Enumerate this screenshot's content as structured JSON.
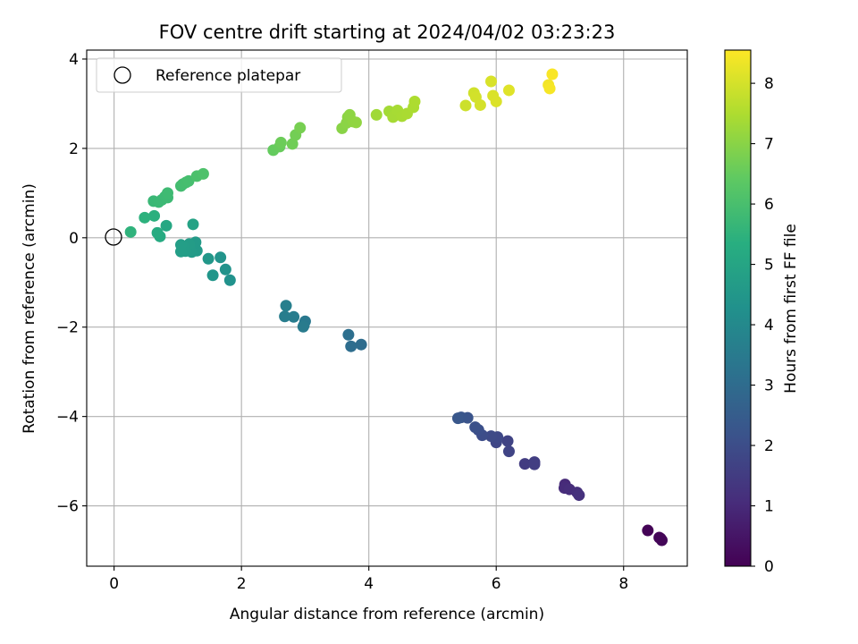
{
  "chart_data": {
    "type": "scatter",
    "title": "FOV centre drift starting at 2024/04/02 03:23:23",
    "xlabel": "Angular distance from reference (arcmin)",
    "ylabel": "Rotation from reference (arcmin)",
    "xlim": [
      -0.43,
      9.0
    ],
    "ylim": [
      -7.35,
      4.2
    ],
    "xticks": [
      0,
      2,
      4,
      6,
      8
    ],
    "yticks": [
      -6,
      -4,
      -2,
      0,
      2,
      4
    ],
    "grid": true,
    "colormap": "viridis",
    "colorbar": {
      "label": "Hours from first FF file",
      "min": 0,
      "max": 8.55,
      "ticks": [
        0,
        1,
        2,
        3,
        4,
        5,
        6,
        7,
        8
      ]
    },
    "legend": {
      "position": "top-left",
      "entries": [
        "Reference platepar"
      ]
    },
    "reference_point": {
      "x": 0,
      "y": 0
    },
    "points": [
      {
        "x": 8.38,
        "y": -6.55,
        "t": 0.05
      },
      {
        "x": 8.56,
        "y": -6.71,
        "t": 0.1
      },
      {
        "x": 8.6,
        "y": -6.77,
        "t": 0.15
      },
      {
        "x": 8.58,
        "y": -6.73,
        "t": 0.12
      },
      {
        "x": 7.08,
        "y": -5.52,
        "t": 1.0
      },
      {
        "x": 7.07,
        "y": -5.6,
        "t": 1.05
      },
      {
        "x": 7.15,
        "y": -5.63,
        "t": 1.1
      },
      {
        "x": 7.27,
        "y": -5.7,
        "t": 1.15
      },
      {
        "x": 7.3,
        "y": -5.76,
        "t": 1.2
      },
      {
        "x": 6.45,
        "y": -5.06,
        "t": 1.5
      },
      {
        "x": 6.6,
        "y": -5.02,
        "t": 1.55
      },
      {
        "x": 6.6,
        "y": -5.07,
        "t": 1.55
      },
      {
        "x": 6.18,
        "y": -4.55,
        "t": 1.7
      },
      {
        "x": 6.2,
        "y": -4.78,
        "t": 1.72
      },
      {
        "x": 6.0,
        "y": -4.58,
        "t": 1.8
      },
      {
        "x": 6.02,
        "y": -4.46,
        "t": 1.85
      },
      {
        "x": 5.92,
        "y": -4.44,
        "t": 1.9
      },
      {
        "x": 5.78,
        "y": -4.42,
        "t": 2.0
      },
      {
        "x": 5.72,
        "y": -4.3,
        "t": 2.05
      },
      {
        "x": 5.67,
        "y": -4.24,
        "t": 2.1
      },
      {
        "x": 5.55,
        "y": -4.03,
        "t": 2.2
      },
      {
        "x": 5.45,
        "y": -4.02,
        "t": 2.25
      },
      {
        "x": 5.4,
        "y": -4.04,
        "t": 2.3
      },
      {
        "x": 3.88,
        "y": -2.39,
        "t": 3.0
      },
      {
        "x": 3.72,
        "y": -2.43,
        "t": 3.05
      },
      {
        "x": 3.68,
        "y": -2.17,
        "t": 3.1
      },
      {
        "x": 3.0,
        "y": -1.87,
        "t": 3.4
      },
      {
        "x": 2.98,
        "y": -1.96,
        "t": 3.45
      },
      {
        "x": 2.97,
        "y": -1.99,
        "t": 3.5
      },
      {
        "x": 2.82,
        "y": -1.77,
        "t": 3.55
      },
      {
        "x": 2.68,
        "y": -1.76,
        "t": 3.6
      },
      {
        "x": 2.7,
        "y": -1.52,
        "t": 3.65
      },
      {
        "x": 1.82,
        "y": -0.95,
        "t": 4.3
      },
      {
        "x": 1.75,
        "y": -0.71,
        "t": 4.35
      },
      {
        "x": 1.67,
        "y": -0.44,
        "t": 4.4
      },
      {
        "x": 1.55,
        "y": -0.84,
        "t": 4.45
      },
      {
        "x": 1.48,
        "y": -0.47,
        "t": 4.5
      },
      {
        "x": 1.3,
        "y": -0.29,
        "t": 4.6
      },
      {
        "x": 1.28,
        "y": -0.1,
        "t": 4.62
      },
      {
        "x": 1.22,
        "y": -0.32,
        "t": 4.64
      },
      {
        "x": 1.2,
        "y": -0.28,
        "t": 4.66
      },
      {
        "x": 1.18,
        "y": -0.14,
        "t": 4.68
      },
      {
        "x": 1.12,
        "y": -0.3,
        "t": 4.7
      },
      {
        "x": 1.1,
        "y": -0.2,
        "t": 4.72
      },
      {
        "x": 1.05,
        "y": -0.31,
        "t": 4.74
      },
      {
        "x": 1.05,
        "y": -0.16,
        "t": 4.76
      },
      {
        "x": 1.24,
        "y": 0.3,
        "t": 4.9
      },
      {
        "x": 0.82,
        "y": 0.27,
        "t": 5.1
      },
      {
        "x": 0.72,
        "y": 0.03,
        "t": 5.2
      },
      {
        "x": 0.68,
        "y": 0.11,
        "t": 5.25
      },
      {
        "x": 0.63,
        "y": 0.49,
        "t": 5.4
      },
      {
        "x": 0.48,
        "y": 0.45,
        "t": 5.45
      },
      {
        "x": 0.26,
        "y": 0.13,
        "t": 5.5
      },
      {
        "x": 0.62,
        "y": 0.82,
        "t": 5.7
      },
      {
        "x": 0.7,
        "y": 0.8,
        "t": 5.72
      },
      {
        "x": 0.75,
        "y": 0.85,
        "t": 5.74
      },
      {
        "x": 0.8,
        "y": 0.92,
        "t": 5.76
      },
      {
        "x": 0.84,
        "y": 0.9,
        "t": 5.78
      },
      {
        "x": 0.84,
        "y": 1.0,
        "t": 5.8
      },
      {
        "x": 1.05,
        "y": 1.16,
        "t": 5.9
      },
      {
        "x": 1.08,
        "y": 1.2,
        "t": 5.92
      },
      {
        "x": 1.13,
        "y": 1.24,
        "t": 5.94
      },
      {
        "x": 1.17,
        "y": 1.27,
        "t": 5.96
      },
      {
        "x": 1.3,
        "y": 1.38,
        "t": 6.05
      },
      {
        "x": 1.4,
        "y": 1.43,
        "t": 6.1
      },
      {
        "x": 2.5,
        "y": 1.96,
        "t": 6.5
      },
      {
        "x": 2.6,
        "y": 2.04,
        "t": 6.55
      },
      {
        "x": 2.62,
        "y": 2.13,
        "t": 6.6
      },
      {
        "x": 2.8,
        "y": 2.1,
        "t": 6.65
      },
      {
        "x": 2.85,
        "y": 2.3,
        "t": 6.7
      },
      {
        "x": 2.92,
        "y": 2.46,
        "t": 6.75
      },
      {
        "x": 3.58,
        "y": 2.45,
        "t": 7.0
      },
      {
        "x": 3.65,
        "y": 2.57,
        "t": 7.02
      },
      {
        "x": 3.67,
        "y": 2.7,
        "t": 7.04
      },
      {
        "x": 3.7,
        "y": 2.75,
        "t": 7.06
      },
      {
        "x": 3.75,
        "y": 2.6,
        "t": 7.08
      },
      {
        "x": 3.8,
        "y": 2.58,
        "t": 7.1
      },
      {
        "x": 4.12,
        "y": 2.75,
        "t": 7.3
      },
      {
        "x": 4.32,
        "y": 2.83,
        "t": 7.35
      },
      {
        "x": 4.38,
        "y": 2.7,
        "t": 7.38
      },
      {
        "x": 4.45,
        "y": 2.85,
        "t": 7.4
      },
      {
        "x": 4.52,
        "y": 2.72,
        "t": 7.42
      },
      {
        "x": 4.6,
        "y": 2.78,
        "t": 7.44
      },
      {
        "x": 4.7,
        "y": 2.92,
        "t": 7.46
      },
      {
        "x": 4.72,
        "y": 3.05,
        "t": 7.48
      },
      {
        "x": 5.52,
        "y": 2.96,
        "t": 7.9
      },
      {
        "x": 5.65,
        "y": 3.24,
        "t": 7.95
      },
      {
        "x": 5.68,
        "y": 3.15,
        "t": 7.98
      },
      {
        "x": 5.75,
        "y": 2.97,
        "t": 8.0
      },
      {
        "x": 5.92,
        "y": 3.5,
        "t": 8.05
      },
      {
        "x": 5.95,
        "y": 3.18,
        "t": 8.08
      },
      {
        "x": 6.0,
        "y": 3.05,
        "t": 8.1
      },
      {
        "x": 6.2,
        "y": 3.3,
        "t": 8.15
      },
      {
        "x": 6.82,
        "y": 3.42,
        "t": 8.4
      },
      {
        "x": 6.84,
        "y": 3.34,
        "t": 8.45
      },
      {
        "x": 6.88,
        "y": 3.66,
        "t": 8.5
      }
    ]
  }
}
